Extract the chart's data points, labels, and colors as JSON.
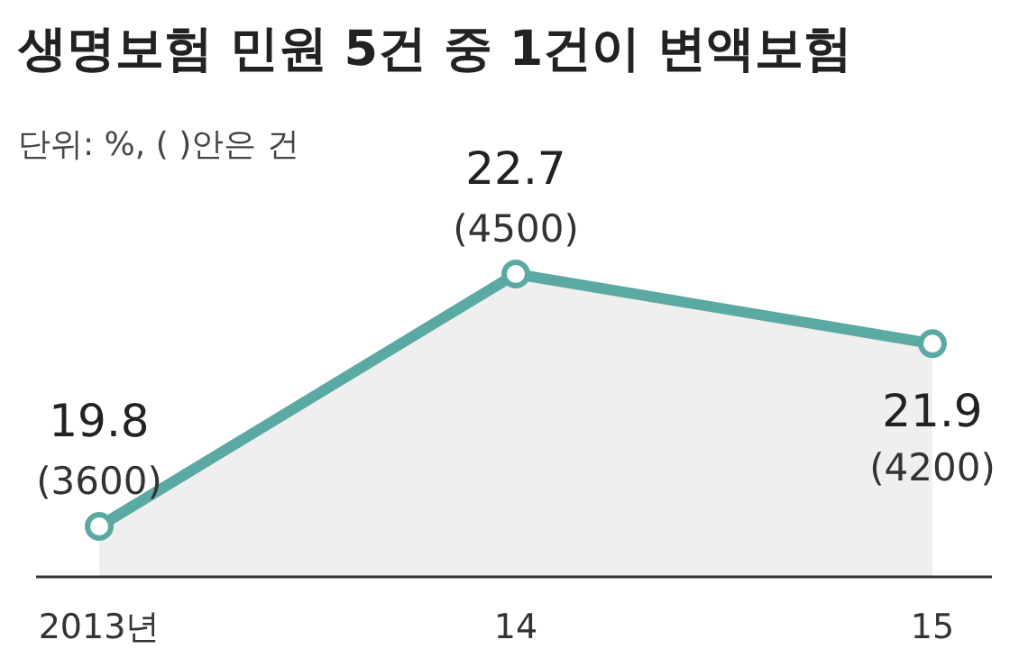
{
  "chart_data": {
    "type": "area",
    "title": "생명보험 민원 5건 중 1건이 변액보험",
    "subtitle": "단위: %, ( )안은 건",
    "categories": [
      "2013년",
      "14",
      "15"
    ],
    "series": [
      {
        "color": "#5aaaa3",
        "values": [
          19.8,
          22.7,
          21.9
        ]
      }
    ],
    "tick_labels": "x",
    "data_labels": true,
    "marker": "circle",
    "line_style": "solid",
    "annotations": [
      {
        "text": "(3600)",
        "x": "2013년",
        "y": 19.8
      },
      {
        "text": "(4500)",
        "x": "14",
        "y": 22.7
      },
      {
        "text": "(4200)",
        "x": "15",
        "y": 21.9
      }
    ]
  }
}
